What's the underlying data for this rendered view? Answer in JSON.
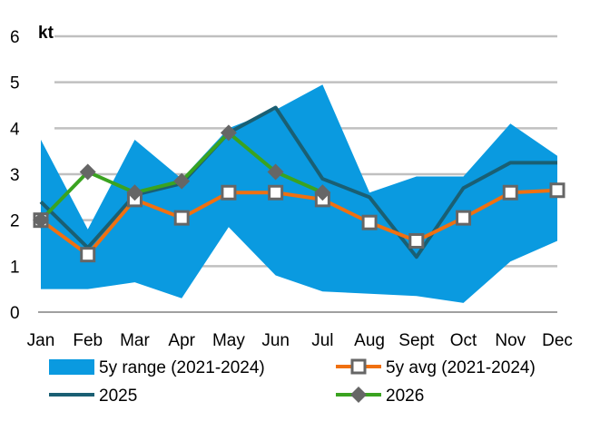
{
  "chart_data": {
    "type": "line",
    "unit_label": "kt",
    "categories": [
      "Jan",
      "Feb",
      "Mar",
      "Apr",
      "May",
      "Jun",
      "Jul",
      "Aug",
      "Sept",
      "Oct",
      "Nov",
      "Dec"
    ],
    "ylim": [
      0,
      6
    ],
    "yticks": [
      "0",
      "1",
      "2",
      "3",
      "4",
      "5",
      "6"
    ],
    "grid": true,
    "legend_position": "bottom",
    "range": {
      "name": "5y range (2021-2024)",
      "color": "#0a9ae0",
      "upper": [
        3.75,
        1.8,
        3.75,
        2.9,
        4.0,
        4.4,
        4.95,
        2.6,
        2.95,
        2.95,
        4.1,
        3.4
      ],
      "lower": [
        0.5,
        0.5,
        0.65,
        0.3,
        1.85,
        0.8,
        0.45,
        0.4,
        0.35,
        0.2,
        1.1,
        1.55
      ]
    },
    "series": [
      {
        "name": "5y avg (2021-2024)",
        "color": "#f07010",
        "marker": "square",
        "values": [
          2.0,
          1.25,
          2.45,
          2.05,
          2.6,
          2.6,
          2.45,
          1.95,
          1.55,
          2.05,
          2.6,
          2.65
        ]
      },
      {
        "name": "2025",
        "color": "#1a5f73",
        "marker": "none",
        "values": [
          2.4,
          1.4,
          2.55,
          2.8,
          3.9,
          4.45,
          2.9,
          2.5,
          1.2,
          2.7,
          3.25,
          3.25
        ]
      },
      {
        "name": "2026",
        "color": "#3aa320",
        "marker": "diamond",
        "values": [
          2.0,
          3.05,
          2.6,
          2.85,
          3.9,
          3.05,
          2.6,
          null,
          null,
          null,
          null,
          null
        ]
      }
    ]
  }
}
